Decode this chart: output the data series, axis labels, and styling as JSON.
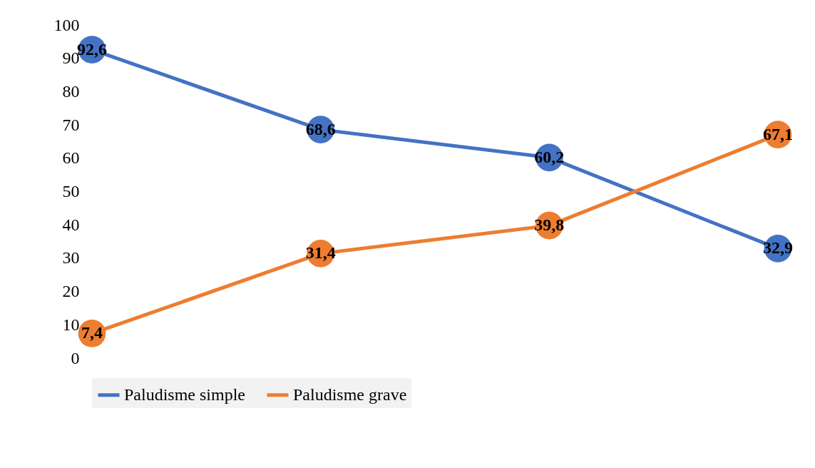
{
  "chart_data": {
    "type": "line",
    "categories": [
      null,
      null,
      null,
      null
    ],
    "series": [
      {
        "name": "Paludisme simple",
        "color": "#4472c4",
        "values": [
          92.6,
          68.6,
          60.2,
          32.9
        ],
        "value_labels": [
          "92,6",
          "68,6",
          "60,2",
          "32,9"
        ]
      },
      {
        "name": "Paludisme grave",
        "color": "#ed7d31",
        "values": [
          7.4,
          31.4,
          39.8,
          67.1
        ],
        "value_labels": [
          "7,4",
          "31,4",
          "39,8",
          "67,1"
        ]
      }
    ],
    "ylim": [
      0,
      100
    ],
    "yticks": [
      0,
      10,
      20,
      30,
      40,
      50,
      60,
      70,
      80,
      90,
      100
    ],
    "grid": false,
    "legend": "bottom",
    "marker": "circle",
    "line_style": "solid"
  }
}
